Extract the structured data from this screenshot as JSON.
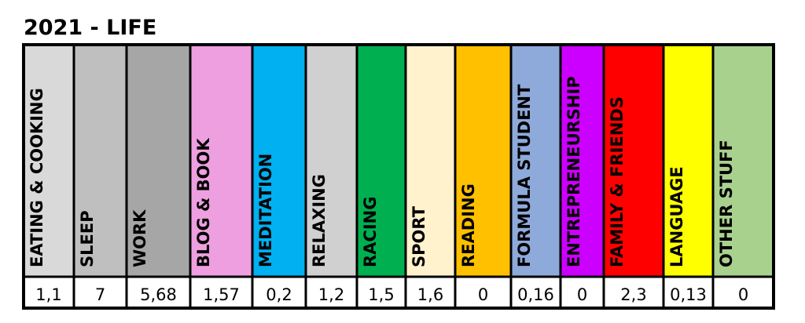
{
  "title": "2021 - LIFE",
  "table": {
    "columns": [
      {
        "label": "EATING & COOKING",
        "value": "1,1",
        "color": "#d9d9d9"
      },
      {
        "label": "SLEEP",
        "value": "7",
        "color": "#bfbfbf"
      },
      {
        "label": "WORK",
        "value": "5,68",
        "color": "#a6a6a6"
      },
      {
        "label": "BLOG & BOOK",
        "value": "1,57",
        "color": "#ee9fe0"
      },
      {
        "label": "MEDITATION",
        "value": "0,2",
        "color": "#00b0f0"
      },
      {
        "label": "RELAXING",
        "value": "1,2",
        "color": "#d0d0d0"
      },
      {
        "label": "RACING",
        "value": "1,5",
        "color": "#00b050"
      },
      {
        "label": "SPORT",
        "value": "1,6",
        "color": "#fff2cc"
      },
      {
        "label": "READING",
        "value": "0",
        "color": "#ffc000"
      },
      {
        "label": "FORMULA STUDENT",
        "value": "0,16",
        "color": "#8eaadb"
      },
      {
        "label": "ENTREPRENEURSHIP",
        "value": "0",
        "color": "#cc00ff"
      },
      {
        "label": "FAMILY & FRIENDS",
        "value": "2,3",
        "color": "#ff0000"
      },
      {
        "label": "LANGUAGE",
        "value": "0,13",
        "color": "#ffff00"
      },
      {
        "label": "OTHER STUFF",
        "value": "0",
        "color": "#a9d18e"
      }
    ]
  }
}
